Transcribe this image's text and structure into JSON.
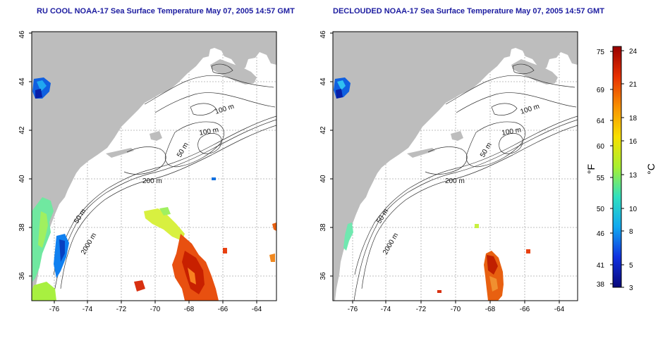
{
  "panels": [
    {
      "title": "RU COOL NOAA-17 Sea Surface Temperature May 07, 2005 14:57 GMT",
      "contour_labels": [
        "100 m",
        "100 m",
        "50 m",
        "200 m",
        "50 m",
        "2000 m"
      ]
    },
    {
      "title": "DECLOUDED NOAA-17 Sea Surface Temperature May 07, 2005 14:57 GMT",
      "contour_labels": [
        "100 m",
        "100 m",
        "50 m",
        "200 m",
        "50 m",
        "2000 m"
      ]
    }
  ],
  "axes": {
    "lon_ticks": [
      "-76",
      "-74",
      "-72",
      "-70",
      "-68",
      "-66",
      "-64"
    ],
    "lat_ticks": [
      "36",
      "38",
      "40",
      "42",
      "44",
      "46"
    ]
  },
  "colorbar": {
    "label_f": "°F",
    "label_c": "°C",
    "f_ticks": [
      "75",
      "69",
      "64",
      "60",
      "55",
      "50",
      "46",
      "41",
      "38"
    ],
    "c_ticks": [
      "24",
      "21",
      "18",
      "16",
      "13",
      "10",
      "8",
      "5",
      "3"
    ],
    "colors": [
      "#08087a",
      "#1030e0",
      "#10a8f0",
      "#30e0c0",
      "#a8f030",
      "#f8e000",
      "#f89000",
      "#e83000",
      "#980000"
    ]
  },
  "colors": {
    "land": "#bdbdbd",
    "title": "#1c1ca0",
    "grid": "#aaaaaa"
  }
}
